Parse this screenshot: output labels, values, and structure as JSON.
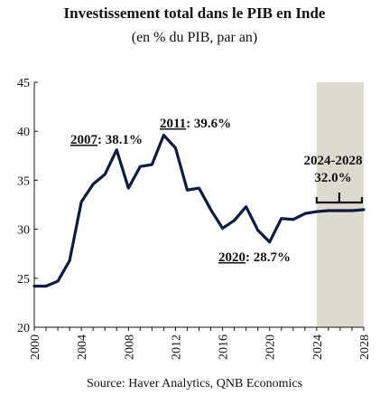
{
  "chart_data": {
    "type": "line",
    "title": "Investissement total dans le PIB en Inde",
    "subtitle": "(en % du PIB, par an)",
    "source": "Source: Haver Analytics, QNB Economics",
    "xlabel": "",
    "ylabel": "",
    "xlim": [
      2000,
      2028
    ],
    "ylim": [
      20,
      45
    ],
    "x_ticks": [
      "2000",
      "2004",
      "2008",
      "2012",
      "2016",
      "2020",
      "2024",
      "2028"
    ],
    "y_ticks": [
      "20",
      "25",
      "30",
      "35",
      "40",
      "45"
    ],
    "grid": false,
    "series": [
      {
        "color": "#0f1b3d",
        "x": [
          2000,
          2001,
          2002,
          2003,
          2004,
          2005,
          2006,
          2007,
          2008,
          2009,
          2010,
          2011,
          2012,
          2013,
          2014,
          2015,
          2016,
          2017,
          2018,
          2019,
          2020,
          2021,
          2022,
          2023,
          2024,
          2025,
          2026,
          2027,
          2028
        ],
        "y": [
          24.2,
          24.2,
          24.7,
          26.8,
          32.8,
          34.6,
          35.6,
          38.1,
          34.2,
          36.4,
          36.6,
          39.6,
          38.3,
          34.0,
          34.2,
          32.0,
          30.1,
          30.9,
          32.3,
          29.9,
          28.7,
          31.1,
          31.0,
          31.6,
          31.8,
          31.9,
          31.9,
          31.9,
          32.0
        ]
      }
    ],
    "shaded_region": {
      "x_start": 2024,
      "x_end": 2028,
      "color": "#dedad0"
    },
    "annotations": [
      {
        "year": "2007",
        "value": ": 38.1%"
      },
      {
        "year": "2011",
        "value": ": 39.6%"
      },
      {
        "year": "2020",
        "value": ": 28.7%"
      },
      {
        "period": "2024-2028",
        "value": "32.0%"
      }
    ]
  }
}
